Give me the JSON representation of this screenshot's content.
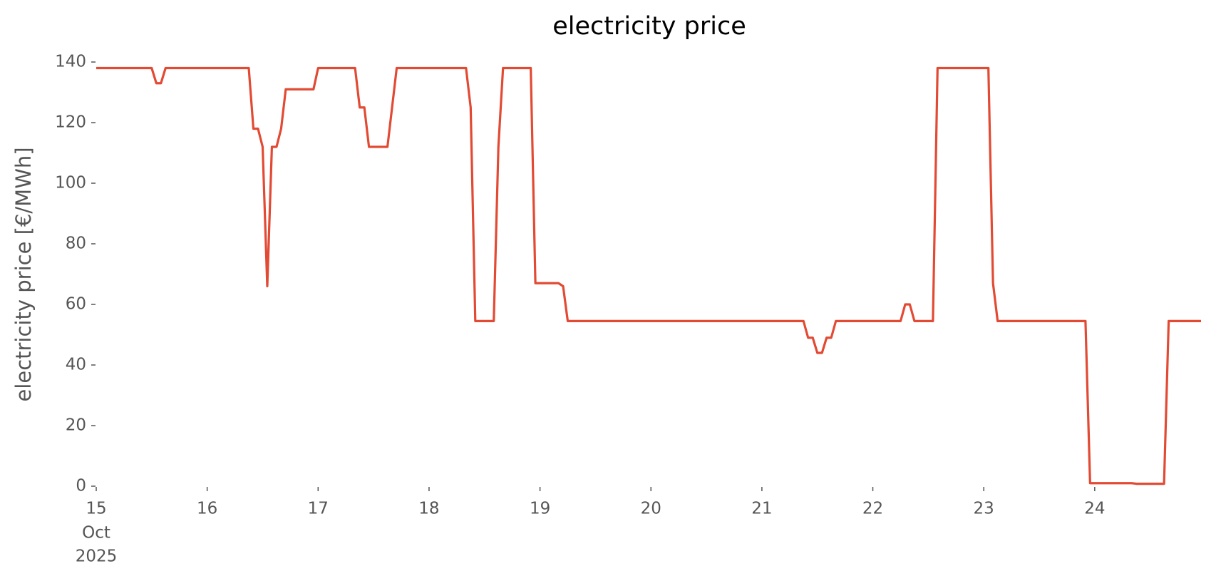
{
  "chart_data": {
    "type": "line",
    "title": "electricity price",
    "ylabel": "electricity price [€/MWh]",
    "x_month": "Oct",
    "x_year": "2025",
    "xlim": [
      15,
      24.9583
    ],
    "xticks": [
      15,
      16,
      17,
      18,
      19,
      20,
      21,
      22,
      23,
      24
    ],
    "ylim": [
      0,
      140
    ],
    "yticks": [
      0,
      20,
      40,
      60,
      80,
      100,
      120,
      140
    ],
    "grid": false,
    "x": [
      15,
      15.5,
      15.5417,
      15.5833,
      15.625,
      16.375,
      16.4167,
      16.4583,
      16.5,
      16.5417,
      16.5833,
      16.625,
      16.6667,
      16.7083,
      16.9583,
      17,
      17.3333,
      17.375,
      17.4167,
      17.4583,
      17.625,
      17.6667,
      17.7083,
      18.3333,
      18.375,
      18.4167,
      18.5833,
      18.625,
      18.6667,
      18.9167,
      18.9583,
      19.1667,
      19.2083,
      19.25,
      21.375,
      21.4167,
      21.4583,
      21.5,
      21.5417,
      21.5833,
      21.625,
      21.6667,
      22.25,
      22.2917,
      22.3333,
      22.375,
      22.5417,
      22.5833,
      23.0417,
      23.0833,
      23.125,
      23.9167,
      23.9583,
      24.3333,
      24.375,
      24.625,
      24.6667,
      24.9583
    ],
    "series": [
      {
        "name": "electricity price",
        "color": "#e24a33",
        "values": [
          138,
          138,
          133,
          133,
          138,
          138,
          118,
          118,
          112,
          66,
          112,
          112,
          118,
          131,
          131,
          138,
          138,
          125,
          125,
          112,
          112,
          125,
          138,
          138,
          125,
          54.5,
          54.5,
          112,
          138,
          138,
          67,
          67,
          66,
          54.5,
          54.5,
          49,
          49,
          44,
          44,
          49,
          49,
          54.5,
          54.5,
          60,
          60,
          54.5,
          54.5,
          138,
          138,
          67,
          54.5,
          54.5,
          1,
          1,
          0.8,
          0.8,
          54.5,
          54.5
        ]
      }
    ]
  }
}
